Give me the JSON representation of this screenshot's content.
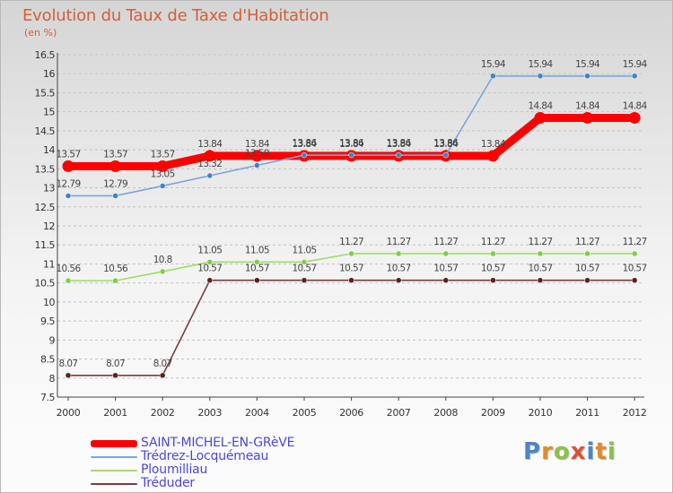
{
  "header": {
    "title": "Evolution du Taux de Taxe d'Habitation",
    "subtitle": "(en %)"
  },
  "logo": {
    "text": "Proxiti",
    "letters": [
      {
        "ch": "P",
        "color": "#4a86c8"
      },
      {
        "ch": "r",
        "color": "#e28a2b"
      },
      {
        "ch": "o",
        "color": "#8cc04a"
      },
      {
        "ch": "x",
        "color": "#e0503a"
      },
      {
        "ch": "i",
        "color": "#4a86c8"
      },
      {
        "ch": "t",
        "color": "#e28a2b"
      },
      {
        "ch": "i",
        "color": "#8cc04a"
      }
    ]
  },
  "chart_data": {
    "type": "line",
    "title": "Evolution du Taux de Taxe d'Habitation",
    "ylabel": "(en %)",
    "xlabel": "",
    "x": [
      "2000",
      "2001",
      "2002",
      "2003",
      "2004",
      "2005",
      "2006",
      "2007",
      "2008",
      "2009",
      "2010",
      "2011",
      "2012"
    ],
    "ylim": [
      7.5,
      16.5
    ],
    "yticks": [
      "7.5",
      "8",
      "8.5",
      "9",
      "9.5",
      "10",
      "10.5",
      "11",
      "11.5",
      "12",
      "12.5",
      "13",
      "13.5",
      "14",
      "14.5",
      "15",
      "15.5",
      "16",
      "16.5"
    ],
    "grid": "dashed horizontal",
    "legend_position": "bottom-left",
    "series": [
      {
        "name": "SAINT-MICHEL-EN-GRèVE",
        "color": "#ff0000",
        "width": "thick",
        "values": [
          13.57,
          13.57,
          13.57,
          13.84,
          13.84,
          13.84,
          13.84,
          13.84,
          13.84,
          13.84,
          14.84,
          14.84,
          14.84
        ],
        "labels": [
          "13.57",
          "13.57",
          "13.57",
          "13.84",
          "13.84",
          "13.84",
          "13.84",
          "13.84",
          "13.84",
          "13.84",
          "14.84",
          "14.84",
          "14.84"
        ]
      },
      {
        "name": "Trédrez-Locquémeau",
        "color": "#7aa6d8",
        "dot": "#3f83c5",
        "values": [
          12.79,
          12.79,
          13.05,
          13.32,
          13.59,
          13.86,
          13.86,
          13.86,
          13.86,
          15.94,
          15.94,
          15.94,
          15.94
        ],
        "labels": [
          "12.79",
          "12.79",
          "13.05",
          "13.32",
          "13.59",
          "13.86",
          "13.86",
          "13.86",
          "13.86",
          "15.94",
          "15.94",
          "15.94",
          "15.94"
        ]
      },
      {
        "name": "Ploumilliau",
        "color": "#9fdc6a",
        "dot": "#7ccf45",
        "values": [
          10.56,
          10.56,
          10.8,
          11.05,
          11.05,
          11.05,
          11.27,
          11.27,
          11.27,
          11.27,
          11.27,
          11.27,
          11.27
        ],
        "labels": [
          "10.56",
          "10.56",
          "10.8",
          "11.05",
          "11.05",
          "11.05",
          "11.27",
          "11.27",
          "11.27",
          "11.27",
          "11.27",
          "11.27",
          "11.27"
        ]
      },
      {
        "name": "Tréduder",
        "color": "#7a3b3b",
        "dot": "#5e1f1f",
        "values": [
          8.07,
          8.07,
          8.07,
          10.57,
          10.57,
          10.57,
          10.57,
          10.57,
          10.57,
          10.57,
          10.57,
          10.57,
          10.57
        ],
        "labels": [
          "8.07",
          "8.07",
          "8.07",
          "10.57",
          "10.57",
          "10.57",
          "10.57",
          "10.57",
          "10.57",
          "10.57",
          "10.57",
          "10.57",
          "10.57"
        ]
      }
    ]
  }
}
